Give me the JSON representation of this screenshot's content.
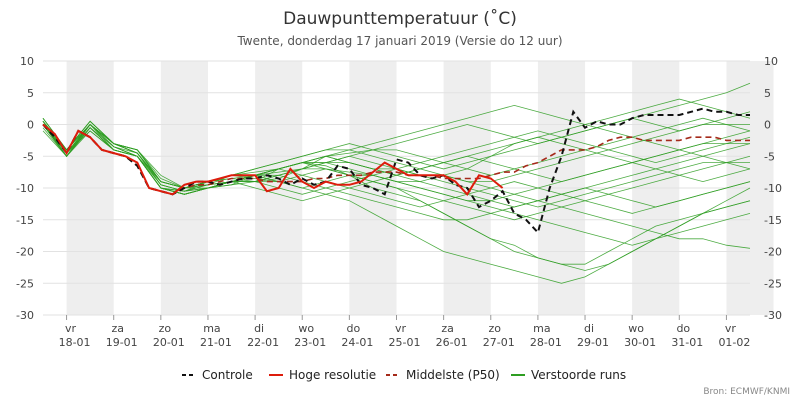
{
  "chart_data": {
    "type": "line",
    "title": "Dauwpunttemperatuur (˚C)",
    "subtitle": "Twente, donderdag 17 januari 2019 (Versie do 12 uur)",
    "credits": "Bron: ECMWF/KNMI",
    "ylim": [
      -30,
      10
    ],
    "yticks": [
      10,
      5,
      0,
      -5,
      -10,
      -15,
      -20,
      -25,
      -30
    ],
    "xlim": [
      0,
      15
    ],
    "xlabel": "",
    "ylabel": "",
    "grid": true,
    "legend_position": "bottom",
    "days": [
      {
        "dow": "vr",
        "date": "18-01"
      },
      {
        "dow": "za",
        "date": "19-01"
      },
      {
        "dow": "zo",
        "date": "20-01"
      },
      {
        "dow": "ma",
        "date": "21-01"
      },
      {
        "dow": "di",
        "date": "22-01"
      },
      {
        "dow": "wo",
        "date": "23-01"
      },
      {
        "dow": "do",
        "date": "24-01"
      },
      {
        "dow": "vr",
        "date": "25-01"
      },
      {
        "dow": "za",
        "date": "26-01"
      },
      {
        "dow": "zo",
        "date": "27-01"
      },
      {
        "dow": "ma",
        "date": "28-01"
      },
      {
        "dow": "di",
        "date": "29-01"
      },
      {
        "dow": "wo",
        "date": "30-01"
      },
      {
        "dow": "do",
        "date": "31-01"
      },
      {
        "dow": "vr",
        "date": "01-02"
      }
    ],
    "colors": {
      "controle": "#111111",
      "hoge_resolutie": "#dd1c0c",
      "middelste": "#a52a1a",
      "verstoorde": "#2e9e22",
      "band": "#eeeeee"
    },
    "series": [
      {
        "name": "Controle",
        "style": "dashed",
        "x": [
          0,
          0.25,
          0.5,
          0.75,
          1,
          1.25,
          1.5,
          1.75,
          2,
          2.25,
          2.5,
          2.75,
          3,
          3.25,
          3.5,
          3.75,
          4,
          4.25,
          4.5,
          4.75,
          5,
          5.25,
          5.5,
          5.75,
          6,
          6.25,
          6.5,
          6.75,
          7,
          7.25,
          7.5,
          7.75,
          8,
          8.25,
          8.5,
          8.75,
          9,
          9.25,
          9.5,
          9.75,
          10,
          10.25,
          10.5,
          10.75,
          11,
          11.25,
          11.5,
          11.75,
          12,
          12.25,
          12.5,
          12.75,
          13,
          13.25,
          13.5,
          13.75,
          14,
          14.25,
          14.5,
          14.75,
          15
        ],
        "y": [
          0,
          -2,
          -4.5,
          -1,
          -2,
          -4,
          -4.5,
          -5,
          -6.5,
          -10,
          -10.5,
          -11,
          -10,
          -9,
          -9,
          -9.5,
          -9,
          -8.5,
          -8.5,
          -8,
          -8.5,
          -9.5,
          -8.5,
          -9.5,
          -9,
          -6.5,
          -7,
          -9.5,
          -10,
          -11,
          -5.5,
          -6,
          -8,
          -8.5,
          -8,
          -9.5,
          -10,
          -13,
          -12,
          -10.5,
          -14,
          -15,
          -17,
          -10,
          -5,
          2,
          -0.5,
          0.5,
          0,
          0,
          1,
          1.5,
          1.5,
          1.5,
          1.5,
          2,
          2.5,
          2,
          2,
          1.5,
          1.5
        ]
      },
      {
        "name": "Hoge resolutie",
        "style": "solid",
        "x": [
          0,
          0.25,
          0.5,
          0.75,
          1,
          1.25,
          1.5,
          1.75,
          2,
          2.25,
          2.5,
          2.75,
          3,
          3.25,
          3.5,
          3.75,
          4,
          4.25,
          4.5,
          4.75,
          5,
          5.25,
          5.5,
          5.75,
          6,
          6.25,
          6.5,
          6.75,
          7,
          7.25,
          7.5,
          7.75,
          8,
          8.25,
          8.5,
          8.75,
          9,
          9.25,
          9.5,
          9.75
        ],
        "y": [
          0,
          -1.5,
          -4.5,
          -1,
          -2,
          -4,
          -4.5,
          -5,
          -6,
          -10,
          -10.5,
          -11,
          -9.5,
          -9,
          -9,
          -8.5,
          -8,
          -8,
          -8,
          -10.5,
          -10,
          -7,
          -9,
          -10,
          -9,
          -9.5,
          -9.5,
          -9,
          -7.5,
          -6,
          -7,
          -8,
          -8,
          -8,
          -8,
          -9,
          -11,
          -8,
          -8.5,
          -10
        ]
      },
      {
        "name": "Middelste (P50)",
        "style": "dashed",
        "x": [
          0,
          0.25,
          0.5,
          0.75,
          1,
          1.25,
          1.5,
          1.75,
          2,
          2.25,
          2.5,
          2.75,
          3,
          3.25,
          3.5,
          3.75,
          4,
          4.25,
          4.5,
          4.75,
          5,
          5.25,
          5.5,
          5.75,
          6,
          6.25,
          6.5,
          6.75,
          7,
          7.25,
          7.5,
          7.75,
          8,
          8.25,
          8.5,
          8.75,
          9,
          9.25,
          9.5,
          9.75,
          10,
          10.25,
          10.5,
          10.75,
          11,
          11.25,
          11.5,
          11.75,
          12,
          12.25,
          12.5,
          12.75,
          13,
          13.25,
          13.5,
          13.75,
          14,
          14.25,
          14.5,
          14.75,
          15
        ],
        "y": [
          0,
          -1.5,
          -4.5,
          -1,
          -2,
          -4,
          -4.5,
          -5,
          -6.5,
          -10,
          -10.5,
          -11,
          -10,
          -9.5,
          -9.5,
          -9,
          -8.5,
          -8.5,
          -8.5,
          -9,
          -9,
          -9,
          -9,
          -8.5,
          -8.5,
          -8,
          -8,
          -8,
          -7.5,
          -7.5,
          -7.5,
          -8,
          -8,
          -8,
          -8.5,
          -8.5,
          -8.5,
          -8.5,
          -8,
          -7.5,
          -7.5,
          -6.5,
          -6,
          -5,
          -4,
          -4,
          -4,
          -3.5,
          -2.5,
          -2,
          -2,
          -2.5,
          -2.5,
          -2.5,
          -2.5,
          -2,
          -2,
          -2,
          -2.5,
          -2.5,
          -2.5
        ]
      },
      {
        "name": "Verstoorde runs",
        "style": "ensemble",
        "x": [
          0,
          0.5,
          1,
          1.5,
          2,
          2.5,
          3,
          3.5,
          4,
          4.5,
          5,
          5.5,
          6,
          6.5,
          7,
          7.5,
          8,
          8.5,
          9,
          9.5,
          10,
          10.5,
          11,
          11.5,
          12,
          12.5,
          13,
          13.5,
          14,
          14.5,
          15
        ],
        "members_y": [
          [
            0.5,
            -4,
            0,
            -3,
            -4.5,
            -9,
            -10,
            -9.5,
            -8,
            -8.5,
            -9,
            -8,
            -7,
            -7.5,
            -8,
            -9,
            -10,
            -11,
            -12,
            -12,
            -11,
            -10,
            -9,
            -8,
            -7,
            -6,
            -5,
            -4,
            -3,
            -3,
            -3
          ],
          [
            0,
            -5,
            -0.5,
            -3.5,
            -5,
            -10,
            -10.5,
            -9,
            -8.5,
            -9,
            -7,
            -6,
            -6.5,
            -8,
            -10,
            -11,
            -12,
            -14,
            -16,
            -18,
            -19,
            -21,
            -22,
            -23,
            -22,
            -20,
            -18,
            -16,
            -14,
            -12,
            -10
          ],
          [
            1,
            -4,
            0.5,
            -3,
            -4,
            -8,
            -10,
            -10,
            -9,
            -9,
            -8.5,
            -7,
            -5,
            -4,
            -3,
            -2,
            -1,
            0,
            1,
            2,
            3,
            2,
            1,
            0,
            1,
            2,
            3,
            4,
            3,
            2,
            1
          ],
          [
            -1,
            -5,
            -1,
            -4,
            -5,
            -10,
            -11,
            -10,
            -9.5,
            -8,
            -7,
            -6,
            -6,
            -7,
            -8,
            -9,
            -9,
            -8,
            -7,
            -5,
            -3,
            -2,
            -1,
            0,
            -1,
            -2,
            -3,
            -4,
            -5,
            -6,
            -7
          ],
          [
            0,
            -4.5,
            0,
            -3,
            -4.5,
            -9.5,
            -10.5,
            -9.5,
            -9,
            -9,
            -8,
            -9,
            -10,
            -11,
            -12,
            -13,
            -14,
            -15,
            -15,
            -14,
            -13,
            -12,
            -11,
            -10,
            -9,
            -8,
            -7,
            -6,
            -5,
            -4,
            -3
          ],
          [
            0.5,
            -4.5,
            -0.5,
            -4,
            -5,
            -9,
            -10,
            -9,
            -8,
            -7,
            -6,
            -5,
            -4,
            -4,
            -5,
            -6,
            -7,
            -8,
            -9,
            -10,
            -11,
            -12,
            -13,
            -14,
            -15,
            -16,
            -17,
            -18,
            -18,
            -19,
            -19.5
          ],
          [
            0,
            -5,
            0,
            -3.5,
            -5,
            -10,
            -11,
            -10,
            -9,
            -8,
            -7.5,
            -7,
            -7,
            -8,
            -9,
            -10,
            -12,
            -14,
            -16,
            -18,
            -20,
            -21,
            -22,
            -22,
            -20,
            -18,
            -16,
            -15,
            -14,
            -13,
            -12
          ],
          [
            0.5,
            -4,
            0.5,
            -3,
            -4,
            -9,
            -10,
            -9,
            -8,
            -7.5,
            -7,
            -6,
            -5,
            -4.5,
            -4,
            -3,
            -2,
            -1,
            0,
            -1,
            -2,
            -3,
            -2,
            -1,
            0,
            1,
            0,
            -1,
            0,
            1,
            2
          ],
          [
            0,
            -4.5,
            -1,
            -4,
            -5,
            -10,
            -10.5,
            -10,
            -9,
            -9,
            -10,
            -11,
            -10,
            -9,
            -8,
            -7,
            -6,
            -5,
            -4,
            -3,
            -2,
            -1,
            -2,
            -3,
            -4,
            -5,
            -6,
            -5,
            -4,
            -3,
            -2
          ],
          [
            1,
            -4,
            0,
            -3,
            -4.5,
            -9,
            -10,
            -9,
            -8.5,
            -8,
            -7,
            -6,
            -5,
            -6,
            -7,
            -8,
            -9,
            -10,
            -11,
            -12,
            -13,
            -12,
            -11,
            -10,
            -11,
            -12,
            -13,
            -12,
            -11,
            -10,
            -9
          ],
          [
            0,
            -5,
            0,
            -3.5,
            -5,
            -10,
            -11,
            -10,
            -9,
            -10,
            -11,
            -12,
            -11,
            -10,
            -9,
            -8,
            -7,
            -6,
            -5,
            -6,
            -7,
            -8,
            -9,
            -8,
            -7,
            -6,
            -5,
            -4,
            -3,
            -2,
            -1
          ],
          [
            0.5,
            -4,
            0.5,
            -3,
            -4,
            -9,
            -10,
            -9,
            -8,
            -7,
            -6,
            -5,
            -4,
            -3,
            -4,
            -5,
            -6,
            -7,
            -6,
            -5,
            -4,
            -3,
            -2,
            -1,
            0,
            1,
            2,
            3,
            4,
            5,
            6.5
          ],
          [
            0,
            -4.5,
            0,
            -3.5,
            -5,
            -9.5,
            -10.5,
            -9.5,
            -9,
            -8,
            -7,
            -6,
            -7,
            -8,
            -9,
            -10,
            -11,
            -12,
            -13,
            -14,
            -15,
            -14,
            -13,
            -12,
            -11,
            -10,
            -9,
            -8,
            -7,
            -6,
            -5
          ],
          [
            -0.5,
            -5,
            -0.5,
            -4,
            -5,
            -10,
            -11,
            -10,
            -9,
            -8,
            -7,
            -8,
            -9,
            -10,
            -11,
            -12,
            -13,
            -12,
            -11,
            -10,
            -9,
            -10,
            -11,
            -12,
            -13,
            -14,
            -13,
            -12,
            -11,
            -10,
            -9
          ],
          [
            0.5,
            -4.5,
            0,
            -3,
            -4.5,
            -9,
            -10,
            -9,
            -8,
            -8,
            -8,
            -7,
            -6,
            -5,
            -4,
            -4,
            -5,
            -6,
            -7,
            -8,
            -7,
            -6,
            -5,
            -4,
            -3,
            -2,
            -1,
            0,
            1,
            0,
            -1
          ],
          [
            0,
            -5,
            -0.5,
            -4,
            -5,
            -10,
            -11,
            -10,
            -9,
            -9,
            -9,
            -10,
            -11,
            -12,
            -14,
            -16,
            -18,
            -20,
            -21,
            -22,
            -23,
            -24,
            -25,
            -24,
            -22,
            -20,
            -18,
            -16,
            -14,
            -13,
            -12
          ],
          [
            1,
            -4,
            0.5,
            -3,
            -4,
            -8.5,
            -10,
            -9.5,
            -9,
            -8,
            -7,
            -6,
            -6,
            -6,
            -7,
            -7,
            -8,
            -8,
            -9,
            -9,
            -8,
            -7,
            -6,
            -5,
            -4,
            -3,
            -2,
            -1,
            0,
            0,
            0
          ],
          [
            0,
            -4.5,
            0,
            -3.5,
            -4.5,
            -9.5,
            -10.5,
            -10,
            -9.5,
            -9,
            -8,
            -7,
            -6,
            -5,
            -6,
            -7,
            -8,
            -9,
            -10,
            -11,
            -12,
            -13,
            -12,
            -11,
            -10,
            -9,
            -8,
            -7,
            -6,
            -6,
            -6
          ],
          [
            0.5,
            -5,
            0,
            -4,
            -5,
            -10,
            -11,
            -10,
            -9,
            -8,
            -7,
            -6,
            -5,
            -6,
            -7,
            -8,
            -7,
            -6,
            -5,
            -4,
            -3,
            -2,
            -3,
            -4,
            -5,
            -6,
            -7,
            -8,
            -9,
            -8,
            -7
          ],
          [
            0,
            -4,
            0,
            -3,
            -4,
            -9,
            -10,
            -9,
            -8,
            -8,
            -9,
            -10,
            -9,
            -8,
            -8,
            -9,
            -10,
            -11,
            -12,
            -13,
            -14,
            -15,
            -16,
            -17,
            -18,
            -19,
            -18,
            -17,
            -16,
            -15,
            -14
          ]
        ]
      }
    ]
  }
}
